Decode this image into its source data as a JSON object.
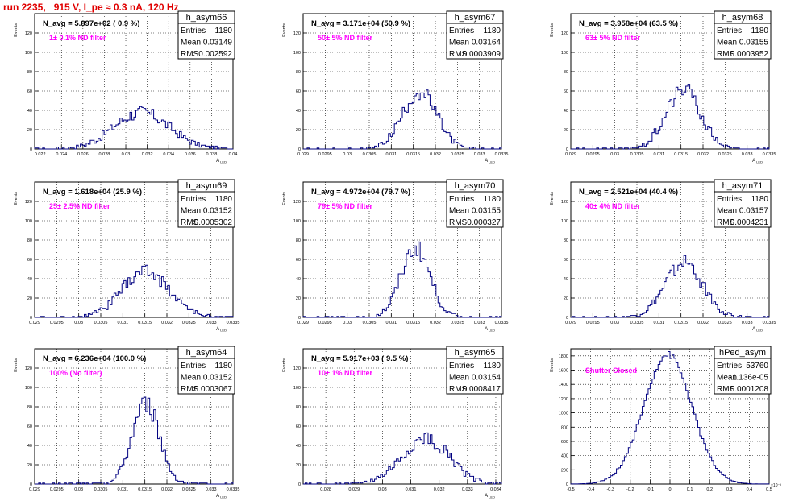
{
  "run_title": "run 2235,   915 V, I_pe ≈ 0.3 nA, 120 Hz",
  "chart_data": [
    {
      "type": "histogram",
      "name": "h_asym66",
      "navg": "N_avg = 5.897e+02 ( 0.9 %)",
      "filter_label": "1± 0.1% ND filter",
      "ylabel": "Events",
      "xlabel": "A_LED",
      "stats": {
        "entries": "1180",
        "mean": "0.03149",
        "rms": "0.002592"
      },
      "xlim": [
        0.0215,
        0.04
      ],
      "ylim": [
        0,
        140
      ],
      "xticks": [
        0.022,
        0.024,
        0.026,
        0.028,
        0.03,
        0.032,
        0.034,
        0.036,
        0.038,
        0.04
      ],
      "xtick_labels": [
        "0.022",
        "0.024",
        "0.026",
        "0.028",
        "0.03",
        "0.032",
        "0.034",
        "0.036",
        "0.038",
        "0.04"
      ],
      "yticks": [
        0,
        20,
        40,
        60,
        80,
        100,
        120
      ],
      "mean_value": 0.03149,
      "sigma": 0.002592,
      "peak": 38,
      "grid": true
    },
    {
      "type": "histogram",
      "name": "h_asym67",
      "navg": "N_avg = 3.171e+04 (50.9 %)",
      "filter_label": "50± 5% ND filter",
      "ylabel": "Events",
      "xlabel": "A_LED",
      "stats": {
        "entries": "1180",
        "mean": "0.03164",
        "rms": "0.0003909"
      },
      "xlim": [
        0.029,
        0.0335
      ],
      "ylim": [
        0,
        140
      ],
      "xticks": [
        0.029,
        0.0295,
        0.03,
        0.0305,
        0.031,
        0.0315,
        0.032,
        0.0325,
        0.033,
        0.0335
      ],
      "xtick_labels": [
        "0.029",
        "0.0295",
        "0.03",
        "0.0305",
        "0.031",
        "0.0315",
        "0.032",
        "0.0325",
        "0.033",
        "0.0335"
      ],
      "yticks": [
        0,
        20,
        40,
        60,
        80,
        100,
        120
      ],
      "mean_value": 0.03164,
      "sigma": 0.0003909,
      "peak": 58,
      "grid": true
    },
    {
      "type": "histogram",
      "name": "h_asym68",
      "navg": "N_avg = 3.958e+04 (63.5 %)",
      "filter_label": "63± 5% ND filter",
      "ylabel": "Events",
      "xlabel": "A_LED",
      "stats": {
        "entries": "1180",
        "mean": "0.03155",
        "rms": "0.0003952"
      },
      "xlim": [
        0.029,
        0.0335
      ],
      "ylim": [
        0,
        140
      ],
      "xticks": [
        0.029,
        0.0295,
        0.03,
        0.0305,
        0.031,
        0.0315,
        0.032,
        0.0325,
        0.033,
        0.0335
      ],
      "xtick_labels": [
        "0.029",
        "0.0295",
        "0.03",
        "0.0305",
        "0.031",
        "0.0315",
        "0.032",
        "0.0325",
        "0.033",
        "0.0335"
      ],
      "yticks": [
        0,
        20,
        40,
        60,
        80,
        100,
        120
      ],
      "mean_value": 0.03155,
      "sigma": 0.0003952,
      "peak": 62,
      "grid": true
    },
    {
      "type": "histogram",
      "name": "h_asym69",
      "navg": "N_avg = 1.618e+04 (25.9 %)",
      "filter_label": "25± 2.5% ND filter",
      "ylabel": "Events",
      "xlabel": "A_LED",
      "stats": {
        "entries": "1180",
        "mean": "0.03152",
        "rms": "0.0005302"
      },
      "xlim": [
        0.029,
        0.0335
      ],
      "ylim": [
        0,
        140
      ],
      "xticks": [
        0.029,
        0.0295,
        0.03,
        0.0305,
        0.031,
        0.0315,
        0.032,
        0.0325,
        0.033,
        0.0335
      ],
      "xtick_labels": [
        "0.029",
        "0.0295",
        "0.03",
        "0.0305",
        "0.031",
        "0.0315",
        "0.032",
        "0.0325",
        "0.033",
        "0.0335"
      ],
      "yticks": [
        0,
        20,
        40,
        60,
        80,
        100,
        120
      ],
      "mean_value": 0.03152,
      "sigma": 0.0005302,
      "peak": 48,
      "grid": true
    },
    {
      "type": "histogram",
      "name": "h_asym70",
      "navg": "N_avg = 4.972e+04 (79.7 %)",
      "filter_label": "79± 5% ND filter",
      "ylabel": "Events",
      "xlabel": "A_LED",
      "stats": {
        "entries": "1180",
        "mean": "0.03155",
        "rms": "0.000327"
      },
      "xlim": [
        0.029,
        0.0335
      ],
      "ylim": [
        0,
        140
      ],
      "xticks": [
        0.029,
        0.0295,
        0.03,
        0.0305,
        0.031,
        0.0315,
        0.032,
        0.0325,
        0.033,
        0.0335
      ],
      "xtick_labels": [
        "0.029",
        "0.0295",
        "0.03",
        "0.0305",
        "0.031",
        "0.0315",
        "0.032",
        "0.0325",
        "0.033",
        "0.0335"
      ],
      "yticks": [
        0,
        20,
        40,
        60,
        80,
        100,
        120
      ],
      "mean_value": 0.03155,
      "sigma": 0.000327,
      "peak": 72,
      "grid": true
    },
    {
      "type": "histogram",
      "name": "h_asym71",
      "navg": "N_avg = 2.521e+04 (40.4 %)",
      "filter_label": "40± 4% ND filter",
      "ylabel": "Events",
      "xlabel": "A_LED",
      "stats": {
        "entries": "1180",
        "mean": "0.03157",
        "rms": "0.0004231"
      },
      "xlim": [
        0.029,
        0.0335
      ],
      "ylim": [
        0,
        140
      ],
      "xticks": [
        0.029,
        0.0295,
        0.03,
        0.0305,
        0.031,
        0.0315,
        0.032,
        0.0325,
        0.033,
        0.0335
      ],
      "xtick_labels": [
        "0.029",
        "0.0295",
        "0.03",
        "0.0305",
        "0.031",
        "0.0315",
        "0.032",
        "0.0325",
        "0.033",
        "0.0335"
      ],
      "yticks": [
        0,
        20,
        40,
        60,
        80,
        100,
        120
      ],
      "mean_value": 0.03157,
      "sigma": 0.0004231,
      "peak": 56,
      "grid": true
    },
    {
      "type": "histogram",
      "name": "h_asym64",
      "navg": "N_avg = 6.236e+04 (100.0 %)",
      "filter_label": "100% (No filter)",
      "ylabel": "Events",
      "xlabel": "A_LED",
      "stats": {
        "entries": "1180",
        "mean": "0.03152",
        "rms": "0.0003067"
      },
      "xlim": [
        0.029,
        0.0335
      ],
      "ylim": [
        0,
        140
      ],
      "xticks": [
        0.029,
        0.0295,
        0.03,
        0.0305,
        0.031,
        0.0315,
        0.032,
        0.0325,
        0.033,
        0.0335
      ],
      "xtick_labels": [
        "0.029",
        "0.0295",
        "0.03",
        "0.0305",
        "0.031",
        "0.0315",
        "0.032",
        "0.0325",
        "0.033",
        "0.0335"
      ],
      "yticks": [
        0,
        20,
        40,
        60,
        80,
        100,
        120
      ],
      "mean_value": 0.03152,
      "sigma": 0.0003067,
      "peak": 84,
      "grid": true
    },
    {
      "type": "histogram",
      "name": "h_asym65",
      "navg": "N_avg = 5.917e+03 ( 9.5 %)",
      "filter_label": "10± 1% ND filter",
      "ylabel": "Events",
      "xlabel": "A_LED",
      "stats": {
        "entries": "1180",
        "mean": "0.03154",
        "rms": "0.0008417"
      },
      "xlim": [
        0.0272,
        0.0342
      ],
      "ylim": [
        0,
        140
      ],
      "xticks": [
        0.028,
        0.029,
        0.03,
        0.031,
        0.032,
        0.033,
        0.034
      ],
      "xtick_labels": [
        "0.028",
        "0.029",
        "0.03",
        "0.031",
        "0.032",
        "0.033",
        "0.034"
      ],
      "yticks": [
        0,
        20,
        40,
        60,
        80,
        100,
        120
      ],
      "mean_value": 0.03154,
      "sigma": 0.0008417,
      "peak": 46,
      "grid": true
    },
    {
      "type": "histogram",
      "name": "hPed_asym",
      "navg": "",
      "filter_label": "Shutter Closed",
      "ylabel": "Events",
      "xlabel": "",
      "exponent_label": "×10⁻³",
      "stats": {
        "entries": "53760",
        "mean": "-1.136e-05",
        "rms": "0.0001208"
      },
      "xlim": [
        -0.5,
        0.5
      ],
      "ylim": [
        0,
        1900
      ],
      "xticks": [
        -0.5,
        -0.4,
        -0.3,
        -0.2,
        -0.1,
        0,
        0.1,
        0.2,
        0.3,
        0.4,
        0.5
      ],
      "xtick_labels": [
        "-0.5",
        "-0.4",
        "-0.3",
        "-0.2",
        "-0.1",
        "0",
        "0.1",
        "0.2",
        "0.3",
        "0.4",
        "0.5"
      ],
      "yticks": [
        0,
        200,
        400,
        600,
        800,
        1000,
        1200,
        1400,
        1600,
        1800
      ],
      "mean_value": -0.01136,
      "sigma": 0.1208,
      "peak": 1820,
      "grid": true
    }
  ],
  "stats_labels": {
    "entries": "Entries",
    "mean": "Mean",
    "rms": "RMS"
  },
  "colors": {
    "hist_line": "#000080",
    "label_magenta": "#ff00ff",
    "title_red": "#e00000",
    "grid": "#000000"
  }
}
